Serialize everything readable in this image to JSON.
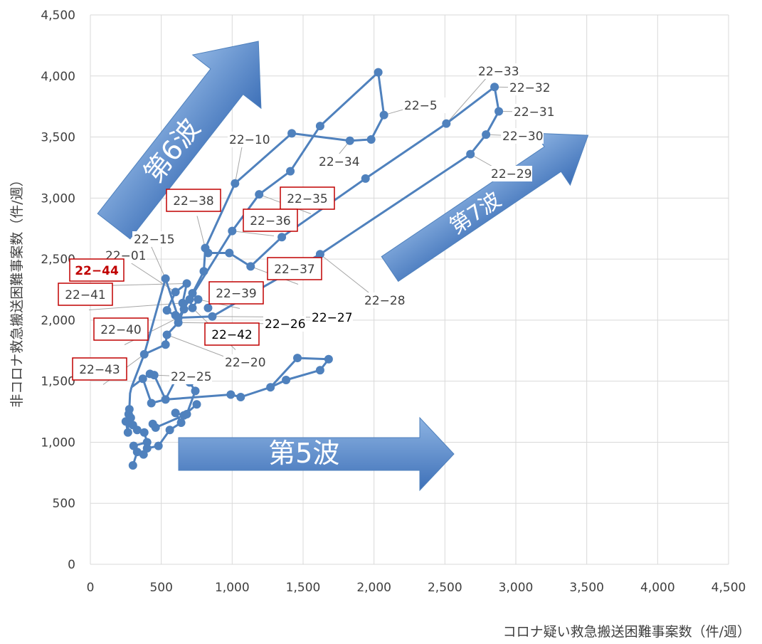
{
  "chart_data": {
    "type": "scatter",
    "title": "",
    "xlabel": "コロナ疑い救急搬送困難事案数（件/週）",
    "ylabel": "非コロナ救急搬送困難事案数（件/週）",
    "xlim": [
      0,
      4500
    ],
    "ylim": [
      0,
      4500
    ],
    "x_ticks": [
      "0",
      "500",
      "1,000",
      "1,500",
      "2,000",
      "2,500",
      "3,000",
      "3,500",
      "4,000",
      "4,500"
    ],
    "y_ticks": [
      "0",
      "500",
      "1,000",
      "1,500",
      "2,000",
      "2,500",
      "3,000",
      "3,500",
      "4,000",
      "4,500"
    ],
    "grid": true,
    "series_color": "#4f81bd",
    "points": [
      {
        "x": 250,
        "y": 1170
      },
      {
        "x": 265,
        "y": 1080
      },
      {
        "x": 270,
        "y": 1230
      },
      {
        "x": 275,
        "y": 1270
      },
      {
        "x": 285,
        "y": 1200
      },
      {
        "x": 300,
        "y": 1140
      },
      {
        "x": 330,
        "y": 1100
      },
      {
        "x": 380,
        "y": 1080
      },
      {
        "x": 400,
        "y": 1000
      },
      {
        "x": 375,
        "y": 900
      },
      {
        "x": 330,
        "y": 920
      },
      {
        "x": 305,
        "y": 970
      },
      {
        "x": 300,
        "y": 810
      },
      {
        "x": 400,
        "y": 950
      },
      {
        "x": 480,
        "y": 970
      },
      {
        "x": 440,
        "y": 1150
      },
      {
        "x": 460,
        "y": 1120
      },
      {
        "x": 560,
        "y": 1100
      },
      {
        "x": 640,
        "y": 1160
      },
      {
        "x": 600,
        "y": 1240
      },
      {
        "x": 660,
        "y": 1220
      },
      {
        "x": 750,
        "y": 1310
      },
      {
        "x": 680,
        "y": 1230
      },
      {
        "x": 530,
        "y": 1350
      },
      {
        "x": 430,
        "y": 1320
      },
      {
        "x": 370,
        "y": 1520
      },
      {
        "x": 420,
        "y": 1560
      },
      {
        "x": 450,
        "y": 1550
      },
      {
        "x": 600,
        "y": 1510
      },
      {
        "x": 700,
        "y": 1490
      },
      {
        "x": 740,
        "y": 1420
      },
      {
        "x": 990,
        "y": 1390
      },
      {
        "x": 1060,
        "y": 1370
      },
      {
        "x": 1380,
        "y": 1510
      },
      {
        "x": 1620,
        "y": 1590
      },
      {
        "x": 1680,
        "y": 1680
      },
      {
        "x": 1460,
        "y": 1690
      },
      {
        "x": 1270,
        "y": 1450
      },
      {
        "x": 380,
        "y": 1720
      },
      {
        "x": 530,
        "y": 1800
      },
      {
        "x": 540,
        "y": 1880
      },
      {
        "x": 620,
        "y": 1980
      },
      {
        "x": 660,
        "y": 2090
      },
      {
        "x": 650,
        "y": 2140
      },
      {
        "x": 720,
        "y": 2220
      },
      {
        "x": 800,
        "y": 2400
      },
      {
        "x": 810,
        "y": 2590
      },
      {
        "x": 830,
        "y": 2550
      },
      {
        "x": 830,
        "y": 2100
      },
      {
        "x": 680,
        "y": 2300
      },
      {
        "x": 600,
        "y": 2230
      },
      {
        "x": 540,
        "y": 2080
      },
      {
        "x": 600,
        "y": 2040
      },
      {
        "x": 700,
        "y": 2170
      },
      {
        "x": 720,
        "y": 2100
      },
      {
        "x": 760,
        "y": 2170
      },
      {
        "x": 530,
        "y": 2340
      },
      {
        "x": 620,
        "y": 2020
      },
      {
        "x": 1000,
        "y": 2730
      },
      {
        "x": 1020,
        "y": 3120
      },
      {
        "x": 1190,
        "y": 3030
      },
      {
        "x": 1410,
        "y": 3220
      },
      {
        "x": 1420,
        "y": 3530
      },
      {
        "x": 1620,
        "y": 3590
      },
      {
        "x": 1830,
        "y": 3470
      },
      {
        "x": 1980,
        "y": 3480
      },
      {
        "x": 2030,
        "y": 4030
      },
      {
        "x": 2070,
        "y": 3680
      },
      {
        "x": 980,
        "y": 2550
      },
      {
        "x": 1130,
        "y": 2440
      },
      {
        "x": 1350,
        "y": 2680
      },
      {
        "x": 1940,
        "y": 3160
      },
      {
        "x": 2510,
        "y": 3610
      },
      {
        "x": 2850,
        "y": 3910
      },
      {
        "x": 2880,
        "y": 3710
      },
      {
        "x": 2790,
        "y": 3520
      },
      {
        "x": 2680,
        "y": 3360
      },
      {
        "x": 1620,
        "y": 2540
      },
      {
        "x": 860,
        "y": 2030
      }
    ],
    "paths": [
      [
        [
          300,
          810
        ],
        [
          330,
          920
        ],
        [
          305,
          970
        ],
        [
          400,
          1000
        ],
        [
          380,
          1080
        ],
        [
          330,
          1100
        ],
        [
          300,
          1140
        ],
        [
          285,
          1200
        ],
        [
          270,
          1230
        ],
        [
          265,
          1080
        ],
        [
          250,
          1170
        ],
        [
          275,
          1270
        ],
        [
          280,
          1400
        ],
        [
          290,
          1450
        ]
      ],
      [
        [
          290,
          1450
        ],
        [
          370,
          1520
        ],
        [
          420,
          1560
        ],
        [
          450,
          1550
        ],
        [
          530,
          1350
        ],
        [
          430,
          1320
        ],
        [
          370,
          1520
        ]
      ],
      [
        [
          375,
          900
        ],
        [
          400,
          950
        ],
        [
          480,
          970
        ],
        [
          560,
          1100
        ],
        [
          640,
          1160
        ],
        [
          600,
          1240
        ],
        [
          660,
          1220
        ],
        [
          750,
          1310
        ]
      ],
      [
        [
          440,
          1150
        ],
        [
          460,
          1120
        ],
        [
          680,
          1230
        ],
        [
          740,
          1420
        ],
        [
          700,
          1490
        ],
        [
          600,
          1510
        ],
        [
          530,
          1350
        ],
        [
          990,
          1390
        ],
        [
          1060,
          1370
        ],
        [
          1270,
          1450
        ],
        [
          1380,
          1510
        ],
        [
          1620,
          1590
        ],
        [
          1680,
          1680
        ],
        [
          1460,
          1690
        ],
        [
          1270,
          1450
        ]
      ],
      [
        [
          290,
          1450
        ],
        [
          380,
          1720
        ],
        [
          530,
          1800
        ],
        [
          540,
          1880
        ],
        [
          620,
          1980
        ],
        [
          660,
          2090
        ],
        [
          720,
          2220
        ],
        [
          800,
          2400
        ],
        [
          810,
          2590
        ],
        [
          830,
          2550
        ],
        [
          980,
          2550
        ],
        [
          1130,
          2440
        ],
        [
          1350,
          2680
        ],
        [
          1940,
          3160
        ],
        [
          2510,
          3610
        ],
        [
          2850,
          3910
        ],
        [
          2880,
          3710
        ],
        [
          2790,
          3520
        ],
        [
          2680,
          3360
        ],
        [
          1620,
          2540
        ],
        [
          860,
          2030
        ],
        [
          620,
          2020
        ],
        [
          540,
          2080
        ],
        [
          600,
          2230
        ],
        [
          680,
          2300
        ],
        [
          650,
          2140
        ],
        [
          700,
          2170
        ],
        [
          720,
          2100
        ],
        [
          760,
          2170
        ]
      ],
      [
        [
          380,
          1720
        ],
        [
          530,
          2340
        ],
        [
          620,
          2020
        ],
        [
          1000,
          2730
        ],
        [
          1190,
          3030
        ],
        [
          1410,
          3220
        ],
        [
          1620,
          3590
        ],
        [
          2030,
          4030
        ],
        [
          2070,
          3680
        ],
        [
          1980,
          3480
        ],
        [
          1830,
          3470
        ],
        [
          1420,
          3530
        ],
        [
          1020,
          3120
        ],
        [
          810,
          2590
        ]
      ]
    ],
    "annotations": [
      {
        "text": "22−5",
        "style": "plain",
        "box": false
      },
      {
        "text": "22−10",
        "style": "plain",
        "box": false
      },
      {
        "text": "22−15",
        "style": "plain",
        "box": false
      },
      {
        "text": "22−01",
        "style": "plain",
        "box": false
      },
      {
        "text": "22−20",
        "style": "plain",
        "box": false
      },
      {
        "text": "22−25",
        "style": "plain",
        "box": false
      },
      {
        "text": "22−26",
        "style": "black",
        "box": false
      },
      {
        "text": "22−27",
        "style": "black",
        "box": false
      },
      {
        "text": "22−28",
        "style": "plain",
        "box": false
      },
      {
        "text": "22−29",
        "style": "plain",
        "box": false
      },
      {
        "text": "22−30",
        "style": "plain",
        "box": false
      },
      {
        "text": "22−31",
        "style": "plain",
        "box": false
      },
      {
        "text": "22−32",
        "style": "plain",
        "box": false
      },
      {
        "text": "22−33",
        "style": "plain",
        "box": false
      },
      {
        "text": "22−34",
        "style": "plain",
        "box": false
      },
      {
        "text": "22−35",
        "style": "plain",
        "box": true
      },
      {
        "text": "22−36",
        "style": "plain",
        "box": true
      },
      {
        "text": "22−37",
        "style": "plain",
        "box": true
      },
      {
        "text": "22−38",
        "style": "plain",
        "box": true
      },
      {
        "text": "22−39",
        "style": "plain",
        "box": true
      },
      {
        "text": "22−40",
        "style": "plain",
        "box": true
      },
      {
        "text": "22−41",
        "style": "plain",
        "box": true
      },
      {
        "text": "22−42",
        "style": "black",
        "box": true
      },
      {
        "text": "22−43",
        "style": "plain",
        "box": true
      },
      {
        "text": "22−44",
        "style": "red",
        "box": true
      }
    ],
    "wave_arrows": [
      {
        "text": "第5波"
      },
      {
        "text": "第6波"
      },
      {
        "text": "第7波"
      }
    ]
  }
}
